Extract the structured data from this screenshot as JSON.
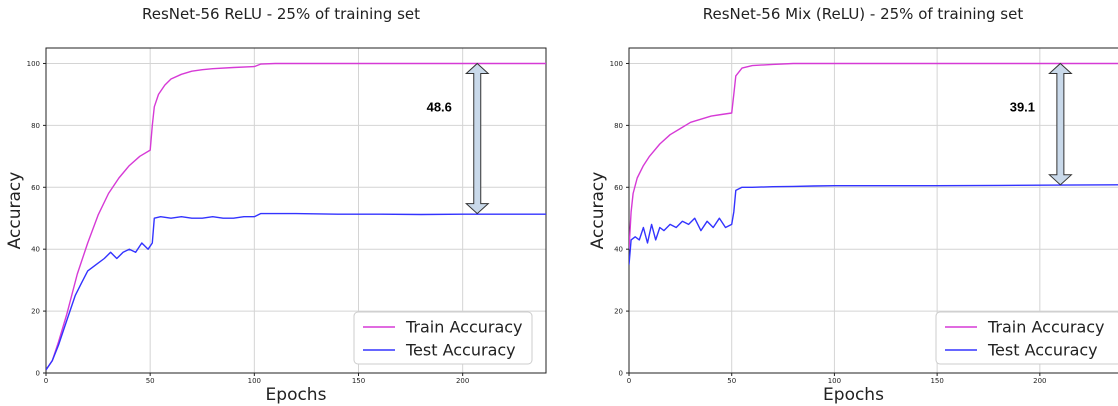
{
  "chart_data": [
    {
      "type": "line",
      "title": "ResNet-56 ReLU - 25% of training set",
      "xlabel": "Epochs",
      "ylabel": "Accuracy",
      "xlim": [
        0,
        240
      ],
      "ylim": [
        0,
        105
      ],
      "xticks": [
        "0",
        "50",
        "100",
        "150",
        "200"
      ],
      "yticks": [
        "0",
        "20",
        "40",
        "60",
        "80",
        "100"
      ],
      "grid": true,
      "legend_position": "lower-right",
      "series": [
        {
          "name": "Train Accuracy",
          "color": "#d63ad6",
          "x": [
            0,
            3,
            6,
            10,
            15,
            20,
            25,
            30,
            35,
            40,
            45,
            50,
            51,
            52,
            54,
            57,
            60,
            65,
            70,
            75,
            80,
            90,
            100,
            103,
            110,
            130,
            160,
            200,
            240
          ],
          "y": [
            1,
            4,
            10,
            19,
            32,
            42,
            51,
            58,
            63,
            67,
            70,
            72,
            80,
            86,
            90,
            93,
            95,
            96.5,
            97.5,
            98,
            98.3,
            98.7,
            99,
            99.8,
            100,
            100,
            100,
            100,
            100
          ]
        },
        {
          "name": "Test Accuracy",
          "color": "#3333ff",
          "x": [
            0,
            3,
            6,
            10,
            14,
            17,
            20,
            24,
            28,
            31,
            34,
            37,
            40,
            43,
            46,
            49,
            51,
            52,
            55,
            60,
            65,
            70,
            75,
            80,
            85,
            90,
            95,
            100,
            103,
            110,
            120,
            140,
            160,
            180,
            200,
            220,
            240
          ],
          "y": [
            1,
            4,
            9,
            17,
            25,
            29,
            33,
            35,
            37,
            39,
            37,
            39,
            40,
            39,
            42,
            40,
            42,
            50,
            50.5,
            50,
            50.5,
            50,
            50,
            50.5,
            50,
            50,
            50.5,
            50.5,
            51.5,
            51.5,
            51.5,
            51.3,
            51.3,
            51.2,
            51.3,
            51.3,
            51.3
          ]
        }
      ],
      "annotation": {
        "label": "48.6",
        "x": 207,
        "from": 51.5,
        "to": 100
      }
    },
    {
      "type": "line",
      "title": "ResNet-56 Mix (ReLU) - 25% of training set",
      "xlabel": "Epochs",
      "ylabel": "Accuracy",
      "xlim": [
        0,
        240
      ],
      "ylim": [
        0,
        105
      ],
      "xticks": [
        "0",
        "50",
        "100",
        "150",
        "200"
      ],
      "yticks": [
        "0",
        "20",
        "40",
        "60",
        "80",
        "100"
      ],
      "grid": true,
      "legend_position": "lower-right",
      "series": [
        {
          "name": "Train Accuracy",
          "color": "#d63ad6",
          "x": [
            0,
            1,
            2,
            4,
            7,
            10,
            15,
            20,
            25,
            30,
            35,
            40,
            45,
            50,
            51,
            52,
            55,
            60,
            70,
            80,
            100,
            150,
            200,
            240
          ],
          "y": [
            40,
            52,
            58,
            63,
            67,
            70,
            74,
            77,
            79,
            81,
            82,
            83,
            83.5,
            84,
            90,
            96,
            98.5,
            99.3,
            99.7,
            100,
            100,
            100,
            100,
            100
          ]
        },
        {
          "name": "Test Accuracy",
          "color": "#3333ff",
          "x": [
            0,
            1,
            3,
            5,
            7,
            9,
            11,
            13,
            15,
            17,
            20,
            23,
            26,
            29,
            32,
            35,
            38,
            41,
            44,
            47,
            50,
            51,
            52,
            55,
            60,
            70,
            80,
            90,
            100,
            120,
            150,
            180,
            210,
            240
          ],
          "y": [
            35,
            43,
            44,
            43,
            47,
            42,
            48,
            43,
            47,
            46,
            48,
            47,
            49,
            48,
            50,
            46,
            49,
            47,
            50,
            47,
            48,
            52,
            59,
            60,
            60,
            60.2,
            60.3,
            60.4,
            60.5,
            60.5,
            60.5,
            60.6,
            60.7,
            60.8
          ]
        }
      ],
      "annotation": {
        "label": "39.1",
        "x": 210,
        "from": 60.8,
        "to": 100
      }
    }
  ]
}
